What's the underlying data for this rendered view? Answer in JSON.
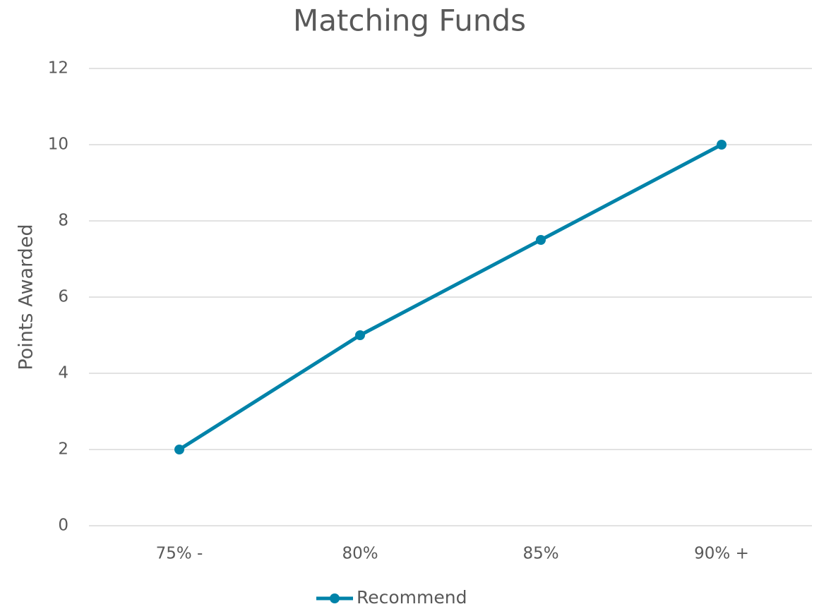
{
  "chart_data": {
    "type": "line",
    "title": "Matching Funds",
    "y_label": "Points Awarded",
    "categories": [
      "75% -",
      "80%",
      "85%",
      "90% +"
    ],
    "series": [
      {
        "name": "Recommend",
        "color": "#0083a9",
        "values": [
          2,
          5,
          7.5,
          10
        ]
      }
    ],
    "ylim": [
      0,
      12
    ],
    "yticks": [
      0,
      2,
      4,
      6,
      8,
      10,
      12
    ],
    "grid": true,
    "legend": "bottom"
  }
}
